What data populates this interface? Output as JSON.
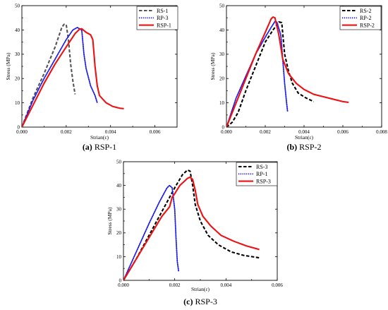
{
  "chart_data": [
    {
      "type": "line",
      "caption_letter": "(a)",
      "caption_text": "RSP-1",
      "xlabel": "Strian(ε)",
      "ylabel": "Stress (MPa)",
      "xlim": [
        0,
        0.007
      ],
      "ylim": [
        0,
        50
      ],
      "x_ticks": [
        "0.000",
        "0.002",
        "0.004",
        "0.006"
      ],
      "y_ticks": [
        "0",
        "10",
        "20",
        "30",
        "40",
        "50"
      ],
      "x_tick_values": [
        0,
        0.002,
        0.004,
        0.006
      ],
      "y_tick_values": [
        0,
        10,
        20,
        30,
        40,
        50
      ],
      "legend_position": "top-right",
      "series": [
        {
          "name": "RS-1",
          "color": "#555555",
          "style": "dashed",
          "points": [
            [
              0,
              0
            ],
            [
              0.0005,
              12
            ],
            [
              0.001,
              22
            ],
            [
              0.0015,
              33
            ],
            [
              0.0018,
              41
            ],
            [
              0.0019,
              42.3
            ],
            [
              0.002,
              42.2
            ],
            [
              0.0021,
              36
            ],
            [
              0.0022,
              26
            ],
            [
              0.0023,
              19
            ],
            [
              0.0024,
              13.5
            ]
          ]
        },
        {
          "name": "RP-3",
          "color": "#1a1aee",
          "style": "dotted",
          "points": [
            [
              0,
              0
            ],
            [
              0.0005,
              11
            ],
            [
              0.001,
              20
            ],
            [
              0.0015,
              28
            ],
            [
              0.002,
              36
            ],
            [
              0.0023,
              40
            ],
            [
              0.0025,
              41
            ],
            [
              0.0027,
              40
            ],
            [
              0.0028,
              30
            ],
            [
              0.0029,
              24
            ],
            [
              0.0031,
              17
            ],
            [
              0.0033,
              13
            ],
            [
              0.0034,
              10
            ]
          ]
        },
        {
          "name": "RSP-1",
          "color": "#ee1111",
          "style": "solid",
          "points": [
            [
              0,
              0
            ],
            [
              0.0005,
              9
            ],
            [
              0.001,
              18
            ],
            [
              0.0015,
              26
            ],
            [
              0.002,
              33
            ],
            [
              0.0024,
              38.5
            ],
            [
              0.0026,
              40.3
            ],
            [
              0.0027,
              40.5
            ],
            [
              0.0029,
              39
            ],
            [
              0.0031,
              38
            ],
            [
              0.0032,
              36
            ],
            [
              0.0033,
              25
            ],
            [
              0.0034,
              17
            ],
            [
              0.0035,
              13
            ],
            [
              0.0038,
              10
            ],
            [
              0.0041,
              8.5
            ],
            [
              0.0044,
              7.8
            ],
            [
              0.0046,
              7.6
            ]
          ]
        }
      ]
    },
    {
      "type": "line",
      "caption_letter": "(b)",
      "caption_text": "RSP-2",
      "xlabel": "Strian(ε)",
      "ylabel": "Stress (MPa)",
      "xlim": [
        0,
        0.008
      ],
      "ylim": [
        0,
        50
      ],
      "x_ticks": [
        "0.000",
        "0.002",
        "0.004",
        "0.006",
        "0.008"
      ],
      "y_ticks": [
        "0",
        "10",
        "20",
        "30",
        "40",
        "50"
      ],
      "x_tick_values": [
        0,
        0.002,
        0.004,
        0.006,
        0.008
      ],
      "y_tick_values": [
        0,
        10,
        20,
        30,
        40,
        50
      ],
      "legend_position": "top-right",
      "series": [
        {
          "name": "RS-2",
          "color": "#000000",
          "style": "dashed",
          "points": [
            [
              0,
              0
            ],
            [
              0.0003,
              2
            ],
            [
              0.0006,
              6
            ],
            [
              0.001,
              15
            ],
            [
              0.0015,
              25
            ],
            [
              0.002,
              35
            ],
            [
              0.0024,
              40
            ],
            [
              0.0026,
              42
            ],
            [
              0.0027,
              43.3
            ],
            [
              0.00285,
              43
            ],
            [
              0.003,
              30
            ],
            [
              0.0032,
              23
            ],
            [
              0.0034,
              18
            ],
            [
              0.0037,
              14
            ],
            [
              0.0041,
              12
            ],
            [
              0.0045,
              10.5
            ]
          ]
        },
        {
          "name": "RP-2",
          "color": "#1a1aee",
          "style": "dotted",
          "points": [
            [
              0,
              0
            ],
            [
              0.0005,
              12
            ],
            [
              0.001,
              21
            ],
            [
              0.0015,
              30
            ],
            [
              0.002,
              37
            ],
            [
              0.0023,
              41
            ],
            [
              0.0025,
              43.5
            ],
            [
              0.0026,
              43.2
            ],
            [
              0.0028,
              38
            ],
            [
              0.0029,
              28
            ],
            [
              0.003,
              18
            ],
            [
              0.0031,
              10
            ],
            [
              0.00315,
              6.5
            ]
          ]
        },
        {
          "name": "RSP-2",
          "color": "#ee1111",
          "style": "solid",
          "points": [
            [
              0,
              0
            ],
            [
              0.0005,
              10
            ],
            [
              0.001,
              20
            ],
            [
              0.0015,
              30
            ],
            [
              0.002,
              39
            ],
            [
              0.0023,
              44.5
            ],
            [
              0.0024,
              45.3
            ],
            [
              0.0025,
              45
            ],
            [
              0.0027,
              38
            ],
            [
              0.0029,
              28
            ],
            [
              0.0032,
              22
            ],
            [
              0.0036,
              18
            ],
            [
              0.004,
              15.5
            ],
            [
              0.0045,
              13.5
            ],
            [
              0.005,
              12.5
            ],
            [
              0.0055,
              11.5
            ],
            [
              0.006,
              10.5
            ],
            [
              0.0063,
              10.2
            ]
          ]
        }
      ]
    },
    {
      "type": "line",
      "caption_letter": "(c)",
      "caption_text": "RSP-3",
      "xlabel": "Strian(ε)",
      "ylabel": "Stress (MPa)",
      "xlim": [
        0,
        0.006
      ],
      "ylim": [
        0,
        50
      ],
      "x_ticks": [
        "0.000",
        "0.002",
        "0.004",
        "0.006"
      ],
      "y_ticks": [
        "0",
        "10",
        "20",
        "30",
        "40",
        "50"
      ],
      "x_tick_values": [
        0,
        0.002,
        0.004,
        0.006
      ],
      "y_tick_values": [
        0,
        10,
        20,
        30,
        40,
        50
      ],
      "legend_position": "top-right",
      "series": [
        {
          "name": "RS-3",
          "color": "#000000",
          "style": "dashed",
          "points": [
            [
              0,
              0
            ],
            [
              0.0005,
              9
            ],
            [
              0.001,
              19
            ],
            [
              0.0015,
              29
            ],
            [
              0.002,
              39
            ],
            [
              0.0023,
              44.5
            ],
            [
              0.0025,
              46.5
            ],
            [
              0.0026,
              46
            ],
            [
              0.0027,
              40
            ],
            [
              0.0028,
              32
            ],
            [
              0.003,
              25
            ],
            [
              0.0033,
              19
            ],
            [
              0.0037,
              15
            ],
            [
              0.0042,
              12
            ],
            [
              0.0047,
              10.5
            ],
            [
              0.0053,
              9.5
            ]
          ]
        },
        {
          "name": "RP-1",
          "color": "#1a1aee",
          "style": "dotted",
          "points": [
            [
              0,
              0
            ],
            [
              0.0005,
              12
            ],
            [
              0.001,
              24
            ],
            [
              0.0014,
              33
            ],
            [
              0.0017,
              39
            ],
            [
              0.0018,
              40
            ],
            [
              0.0019,
              39
            ],
            [
              0.002,
              30
            ],
            [
              0.00205,
              18
            ],
            [
              0.0021,
              8
            ],
            [
              0.00215,
              4
            ]
          ]
        },
        {
          "name": "RSP-3",
          "color": "#ee1111",
          "style": "solid",
          "points": [
            [
              0,
              0
            ],
            [
              0.0005,
              9
            ],
            [
              0.001,
              18
            ],
            [
              0.0015,
              27
            ],
            [
              0.0018,
              31
            ],
            [
              0.0019,
              35
            ],
            [
              0.002,
              36.5
            ],
            [
              0.0022,
              40
            ],
            [
              0.0025,
              43
            ],
            [
              0.0026,
              43.5
            ],
            [
              0.0027,
              42.5
            ],
            [
              0.0028,
              38
            ],
            [
              0.0029,
              32
            ],
            [
              0.0031,
              27
            ],
            [
              0.0034,
              23
            ],
            [
              0.0038,
              19
            ],
            [
              0.0043,
              16.5
            ],
            [
              0.0048,
              14.5
            ],
            [
              0.0053,
              13
            ]
          ]
        }
      ]
    }
  ]
}
